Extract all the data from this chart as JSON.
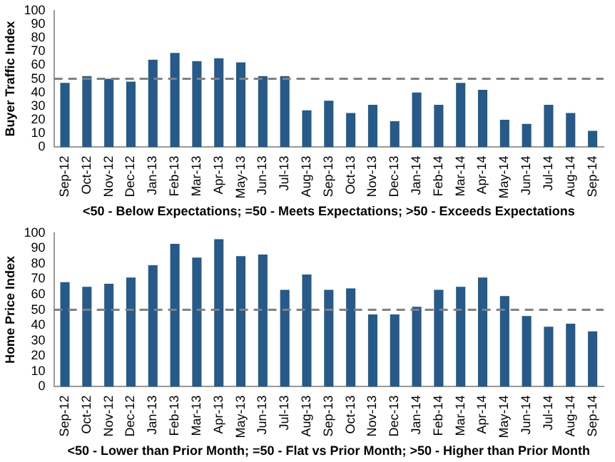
{
  "chart_data": [
    {
      "type": "bar",
      "ylabel": "Buyer Traffic Index",
      "xlabel": "<50 - Below Expectations; =50 - Meets Expectations; >50 - Exceeds Expectations",
      "categories": [
        "Sep-12",
        "Oct-12",
        "Nov-12",
        "Dec-12",
        "Jan-13",
        "Feb-13",
        "Mar-13",
        "Apr-13",
        "May-13",
        "Jun-13",
        "Jul-13",
        "Aug-13",
        "Sep-13",
        "Oct-13",
        "Nov-13",
        "Dec-13",
        "Jan-14",
        "Feb-14",
        "Mar-14",
        "Apr-14",
        "May-14",
        "Jun-14",
        "Jul-14",
        "Aug-14",
        "Sep-14"
      ],
      "values": [
        47,
        52,
        50,
        48,
        64,
        69,
        63,
        65,
        62,
        52,
        52,
        27,
        34,
        25,
        31,
        19,
        40,
        31,
        47,
        42,
        20,
        17,
        31,
        25,
        12
      ],
      "color": "#255a8a",
      "ylim": [
        0,
        100
      ],
      "yticks": [
        0,
        10,
        20,
        30,
        40,
        50,
        60,
        70,
        80,
        90,
        100
      ],
      "grid": false,
      "legend": false,
      "ref_lines": [
        {
          "axis": "y",
          "value": 50,
          "color": "#808080",
          "line_style": "dashed"
        }
      ]
    },
    {
      "type": "bar",
      "ylabel": "Home Price Index",
      "xlabel": "<50 - Lower than Prior Month; =50 - Flat vs Prior Month; >50 - Higher than Prior Month",
      "categories": [
        "Sep-12",
        "Oct-12",
        "Nov-12",
        "Dec-12",
        "Jan-13",
        "Feb-13",
        "Mar-13",
        "Apr-13",
        "May-13",
        "Jun-13",
        "Jul-13",
        "Aug-13",
        "Sep-13",
        "Oct-13",
        "Nov-13",
        "Dec-13",
        "Jan-14",
        "Feb-14",
        "Mar-14",
        "Apr-14",
        "May-14",
        "Jun-14",
        "Jul-14",
        "Aug-14",
        "Sep-14"
      ],
      "values": [
        68,
        65,
        67,
        71,
        79,
        93,
        84,
        96,
        85,
        86,
        63,
        73,
        63,
        64,
        47,
        47,
        52,
        63,
        65,
        71,
        59,
        46,
        39,
        41,
        36
      ],
      "color": "#255a8a",
      "ylim": [
        0,
        100
      ],
      "yticks": [
        0,
        10,
        20,
        30,
        40,
        50,
        60,
        70,
        80,
        90,
        100
      ],
      "grid": false,
      "legend": false,
      "ref_lines": [
        {
          "axis": "y",
          "value": 50,
          "color": "#808080",
          "line_style": "dashed"
        }
      ]
    }
  ]
}
